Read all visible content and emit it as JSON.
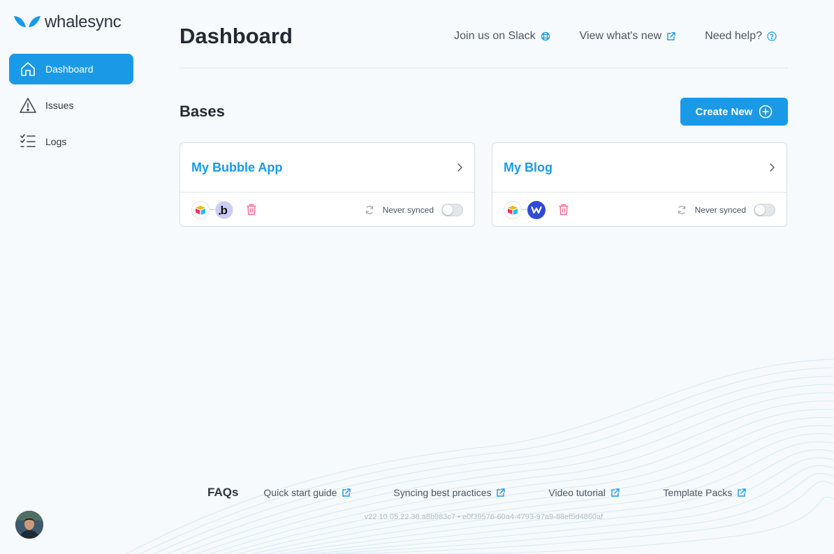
{
  "brand": {
    "name": "whalesync",
    "accent": "#1a9ae6"
  },
  "sidebar": {
    "items": [
      {
        "label": "Dashboard",
        "icon": "home-icon",
        "active": true
      },
      {
        "label": "Issues",
        "icon": "warning-icon",
        "active": false
      },
      {
        "label": "Logs",
        "icon": "checklist-icon",
        "active": false
      }
    ]
  },
  "header": {
    "title": "Dashboard",
    "links": [
      {
        "label": "Join us on Slack",
        "icon": "slack-icon"
      },
      {
        "label": "View what's new",
        "icon": "external-link-icon"
      },
      {
        "label": "Need help?",
        "icon": "help-circle-icon"
      }
    ]
  },
  "bases": {
    "title": "Bases",
    "create_label": "Create New",
    "cards": [
      {
        "title": "My Bubble App",
        "apps": [
          "airtable-icon",
          "bubble-icon"
        ],
        "status": "Never synced"
      },
      {
        "title": "My Blog",
        "apps": [
          "airtable-icon",
          "webflow-icon"
        ],
        "status": "Never synced"
      }
    ]
  },
  "footer": {
    "faq": "FAQs",
    "links": [
      "Quick start guide",
      "Syncing best practices",
      "Video tutorial",
      "Template Packs"
    ],
    "version": "v22.10.05.22.38.a8b983c7 • e0f39576-60a4-4793-97a9-88ef5d4860af"
  }
}
